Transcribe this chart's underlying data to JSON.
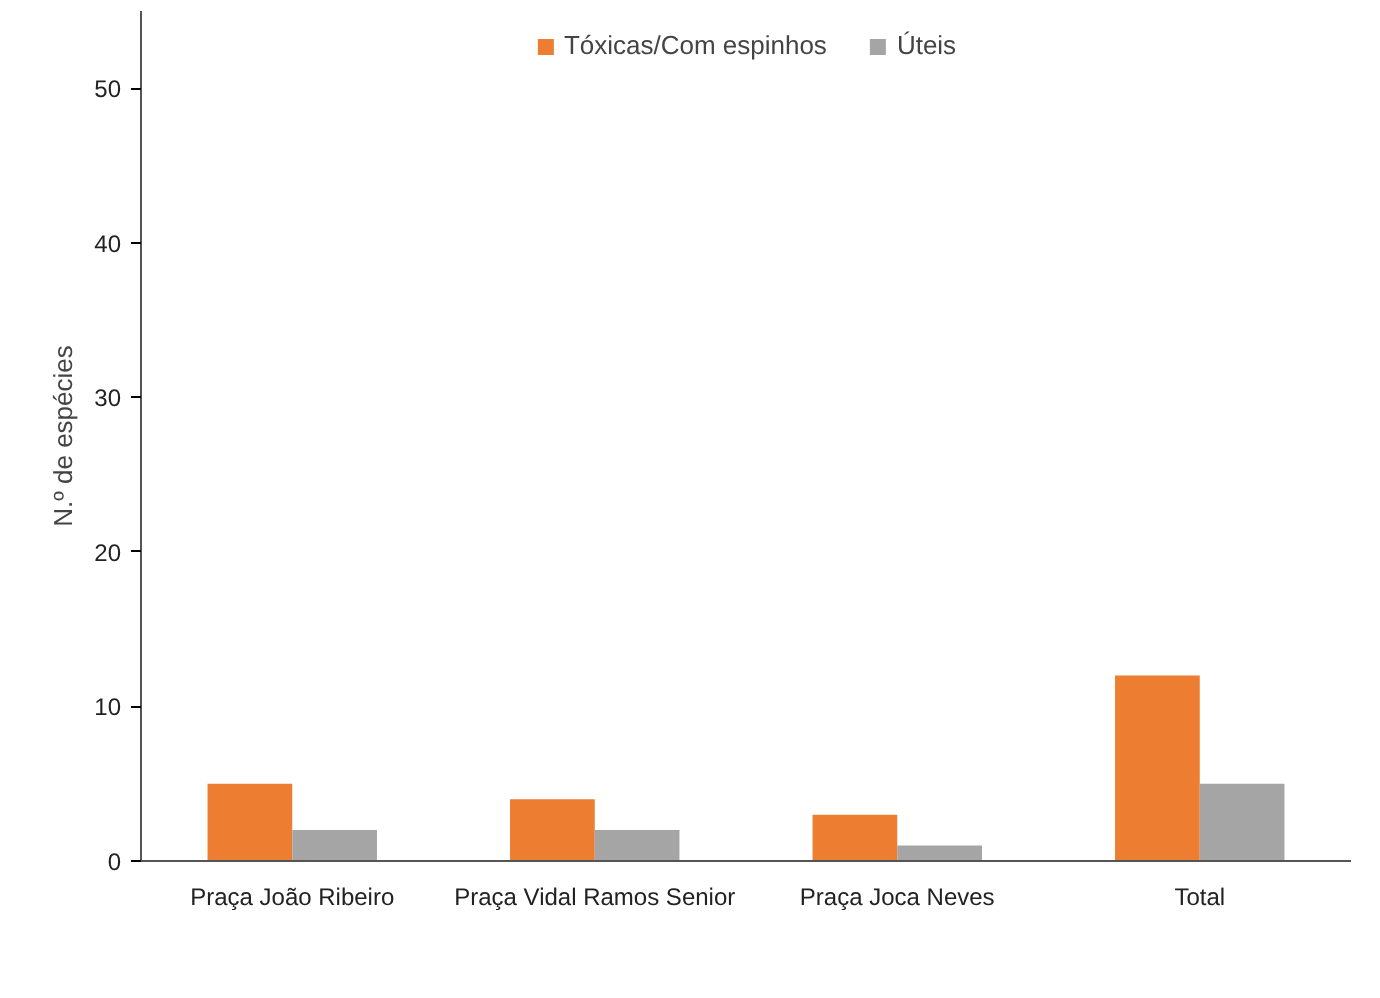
{
  "chart_data": {
    "type": "bar",
    "ylabel": "N.º de espécies",
    "categories": [
      "Praça João Ribeiro",
      "Praça Vidal Ramos Senior",
      "Praça Joca Neves",
      "Total"
    ],
    "series": [
      {
        "name": "Tóxicas/Com espinhos",
        "color": "#ed7d31",
        "values": [
          5,
          4,
          3,
          12
        ]
      },
      {
        "name": "Úteis",
        "color": "#a5a5a5",
        "values": [
          2,
          2,
          1,
          5
        ]
      }
    ],
    "ylim": [
      0,
      55
    ],
    "yticks": [
      0,
      10,
      20,
      30,
      40,
      50
    ],
    "grid": false,
    "legend": "top"
  }
}
